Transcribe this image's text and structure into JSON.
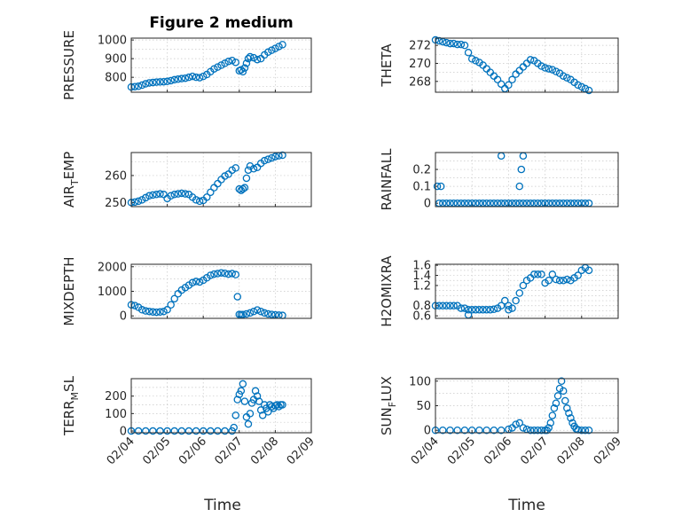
{
  "figure": {
    "title": "Figure 2 medium"
  },
  "colors": {
    "marker": "#0072bd",
    "axis": "#262626",
    "grid": "#c8c8c8"
  },
  "chart_data": [
    {
      "type": "scatter",
      "ylabel": "PRESSURE",
      "title": "Figure 2 medium",
      "ylim": [
        720,
        1010
      ],
      "xlim": [
        0,
        5
      ],
      "yticks": [
        800,
        900,
        1000
      ],
      "ytick_labels": [
        "800",
        "900",
        "1000"
      ],
      "x": [
        0,
        0.1,
        0.2,
        0.3,
        0.4,
        0.5,
        0.6,
        0.7,
        0.8,
        0.9,
        1.0,
        1.1,
        1.2,
        1.3,
        1.4,
        1.5,
        1.6,
        1.7,
        1.8,
        1.9,
        2.0,
        2.1,
        2.2,
        2.3,
        2.4,
        2.5,
        2.6,
        2.7,
        2.8,
        2.9,
        3.0,
        3.05,
        3.1,
        3.15,
        3.2,
        3.25,
        3.3,
        3.4,
        3.5,
        3.6,
        3.7,
        3.8,
        3.9,
        4.0,
        4.1,
        4.2
      ],
      "y": [
        748,
        750,
        752,
        758,
        765,
        770,
        772,
        774,
        775,
        776,
        778,
        782,
        787,
        790,
        793,
        795,
        800,
        805,
        800,
        798,
        805,
        815,
        830,
        845,
        855,
        865,
        875,
        885,
        890,
        880,
        835,
        840,
        830,
        850,
        875,
        900,
        910,
        905,
        895,
        900,
        920,
        935,
        945,
        955,
        965,
        975
      ]
    },
    {
      "type": "scatter",
      "ylabel": "THETA",
      "ylim": [
        266.8,
        272.8
      ],
      "xlim": [
        0,
        5
      ],
      "yticks": [
        268,
        270,
        272
      ],
      "ytick_labels": [
        "268",
        "270",
        "272"
      ],
      "x": [
        0,
        0.1,
        0.2,
        0.3,
        0.4,
        0.5,
        0.6,
        0.7,
        0.8,
        0.9,
        1.0,
        1.1,
        1.2,
        1.3,
        1.4,
        1.5,
        1.6,
        1.7,
        1.8,
        1.9,
        2.0,
        2.1,
        2.2,
        2.3,
        2.4,
        2.5,
        2.6,
        2.7,
        2.8,
        2.9,
        3.0,
        3.1,
        3.2,
        3.3,
        3.4,
        3.5,
        3.6,
        3.7,
        3.8,
        3.9,
        4.0,
        4.1,
        4.2
      ],
      "y": [
        272.6,
        272.5,
        272.4,
        272.3,
        272.2,
        272.2,
        272.1,
        272.1,
        272.0,
        271.2,
        270.5,
        270.3,
        270.1,
        269.8,
        269.4,
        269.0,
        268.6,
        268.2,
        267.7,
        267.2,
        267.6,
        268.2,
        268.8,
        269.2,
        269.6,
        270.0,
        270.4,
        270.3,
        270.0,
        269.7,
        269.5,
        269.4,
        269.3,
        269.1,
        268.9,
        268.6,
        268.4,
        268.2,
        267.9,
        267.6,
        267.4,
        267.2,
        267.0
      ]
    },
    {
      "type": "scatter",
      "ylabel": "AIR_TEMP",
      "ylim": [
        248.5,
        268.5
      ],
      "xlim": [
        0,
        5
      ],
      "yticks": [
        250,
        260
      ],
      "ytick_labels": [
        "250",
        "260"
      ],
      "x": [
        0,
        0.1,
        0.2,
        0.3,
        0.4,
        0.5,
        0.6,
        0.7,
        0.8,
        0.9,
        1.0,
        1.1,
        1.2,
        1.3,
        1.4,
        1.5,
        1.6,
        1.7,
        1.8,
        1.9,
        2.0,
        2.1,
        2.2,
        2.3,
        2.4,
        2.5,
        2.6,
        2.7,
        2.8,
        2.9,
        3.0,
        3.05,
        3.1,
        3.15,
        3.2,
        3.25,
        3.3,
        3.4,
        3.5,
        3.6,
        3.7,
        3.8,
        3.9,
        4.0,
        4.1,
        4.2
      ],
      "y": [
        250,
        250.2,
        250.5,
        251,
        251.8,
        252.5,
        252.8,
        253,
        253.2,
        253,
        251.5,
        252.5,
        253,
        253.2,
        253.4,
        253.2,
        253,
        252,
        251,
        250.5,
        250.8,
        252,
        253.8,
        255.5,
        257,
        258.5,
        259.8,
        260.5,
        262,
        262.8,
        255,
        254.5,
        255,
        255.5,
        259,
        262,
        263.5,
        262.5,
        263,
        264.5,
        265.5,
        266,
        266.5,
        267,
        267.3,
        267.5
      ]
    },
    {
      "type": "scatter",
      "ylabel": "RAINFALL",
      "ylim": [
        -0.02,
        0.3
      ],
      "xlim": [
        0,
        5
      ],
      "yticks": [
        0,
        0.1,
        0.2
      ],
      "ytick_labels": [
        "0",
        "0.1",
        "0.2"
      ],
      "x": [
        0.1,
        0.2,
        0.3,
        0.4,
        0.5,
        0.6,
        0.7,
        0.8,
        0.9,
        1.0,
        1.1,
        1.2,
        1.3,
        1.4,
        1.5,
        1.6,
        1.7,
        1.8,
        1.9,
        2.0,
        2.1,
        2.2,
        2.3,
        2.4,
        2.5,
        2.6,
        2.7,
        2.8,
        2.9,
        3.0,
        3.1,
        3.2,
        3.3,
        3.4,
        3.5,
        3.6,
        3.7,
        3.8,
        3.9,
        4.0,
        4.1,
        4.2,
        0.05,
        0.15,
        1.8,
        2.3,
        2.35,
        2.4
      ],
      "y": [
        0,
        0,
        0,
        0,
        0,
        0,
        0,
        0,
        0,
        0,
        0,
        0,
        0,
        0,
        0,
        0,
        0,
        0,
        0,
        0,
        0,
        0,
        0,
        0,
        0,
        0,
        0,
        0,
        0,
        0,
        0,
        0,
        0,
        0,
        0,
        0,
        0,
        0,
        0,
        0,
        0,
        0,
        0.1,
        0.1,
        0.28,
        0.1,
        0.2,
        0.28
      ]
    },
    {
      "type": "scatter",
      "ylabel": "MIXDEPTH",
      "ylim": [
        -100,
        2100
      ],
      "xlim": [
        0,
        5
      ],
      "yticks": [
        0,
        1000,
        2000
      ],
      "ytick_labels": [
        "0",
        "1000",
        "2000"
      ],
      "x": [
        0,
        0.1,
        0.2,
        0.3,
        0.4,
        0.5,
        0.6,
        0.7,
        0.8,
        0.9,
        1.0,
        1.1,
        1.2,
        1.3,
        1.4,
        1.5,
        1.6,
        1.7,
        1.8,
        1.9,
        2.0,
        2.1,
        2.2,
        2.3,
        2.4,
        2.5,
        2.6,
        2.7,
        2.8,
        2.9,
        2.95,
        3.0,
        3.05,
        3.1,
        3.2,
        3.3,
        3.4,
        3.5,
        3.6,
        3.7,
        3.8,
        3.9,
        4.0,
        4.1,
        4.2
      ],
      "y": [
        450,
        420,
        350,
        250,
        200,
        180,
        160,
        150,
        160,
        180,
        250,
        450,
        700,
        900,
        1050,
        1150,
        1250,
        1350,
        1400,
        1380,
        1450,
        1550,
        1650,
        1700,
        1720,
        1750,
        1730,
        1700,
        1720,
        1680,
        780,
        60,
        50,
        55,
        80,
        120,
        180,
        240,
        180,
        120,
        80,
        60,
        40,
        30,
        20
      ]
    },
    {
      "type": "scatter",
      "ylabel": "H2OMIXRA",
      "ylim": [
        0.55,
        1.62
      ],
      "xlim": [
        0,
        5
      ],
      "yticks": [
        0.6,
        0.8,
        1.2,
        1.4,
        1.6
      ],
      "ytick_labels": [
        "0.6",
        "0.8",
        "1.2",
        "1.4",
        "1.6"
      ],
      "x": [
        0,
        0.1,
        0.2,
        0.3,
        0.4,
        0.5,
        0.6,
        0.7,
        0.8,
        0.9,
        1.0,
        1.1,
        1.2,
        1.3,
        1.4,
        1.5,
        1.6,
        1.7,
        1.8,
        1.9,
        2.0,
        2.1,
        2.2,
        2.3,
        2.4,
        2.5,
        2.6,
        2.7,
        2.8,
        2.9,
        3.0,
        3.1,
        3.2,
        3.3,
        3.4,
        3.5,
        3.6,
        3.7,
        3.8,
        3.9,
        4.0,
        4.1,
        4.2,
        0.9,
        2.0
      ],
      "y": [
        0.8,
        0.8,
        0.8,
        0.8,
        0.8,
        0.8,
        0.8,
        0.75,
        0.75,
        0.72,
        0.72,
        0.72,
        0.72,
        0.72,
        0.72,
        0.72,
        0.73,
        0.75,
        0.8,
        0.9,
        0.72,
        0.75,
        0.9,
        1.05,
        1.2,
        1.3,
        1.35,
        1.42,
        1.42,
        1.42,
        1.25,
        1.3,
        1.42,
        1.32,
        1.3,
        1.3,
        1.32,
        1.3,
        1.35,
        1.4,
        1.5,
        1.55,
        1.5,
        0.62,
        0.8
      ]
    },
    {
      "type": "scatter",
      "ylabel": "TERR_MSL",
      "ylim": [
        -10,
        300
      ],
      "xlim": [
        0,
        5
      ],
      "yticks": [
        0,
        100,
        200
      ],
      "ytick_labels": [
        "0",
        "100",
        "200"
      ],
      "x": [
        0,
        0.2,
        0.4,
        0.6,
        0.8,
        1.0,
        1.2,
        1.4,
        1.6,
        1.8,
        2.0,
        2.2,
        2.4,
        2.6,
        2.8,
        2.85,
        2.9,
        2.95,
        3.0,
        3.05,
        3.1,
        3.15,
        3.2,
        3.25,
        3.3,
        3.35,
        3.4,
        3.45,
        3.5,
        3.55,
        3.6,
        3.65,
        3.7,
        3.75,
        3.8,
        3.85,
        3.9,
        3.95,
        4.0,
        4.05,
        4.1,
        4.15,
        4.2
      ],
      "y": [
        0,
        0,
        0,
        0,
        0,
        0,
        0,
        0,
        0,
        0,
        0,
        0,
        0,
        0,
        0,
        20,
        90,
        180,
        210,
        230,
        270,
        170,
        80,
        40,
        100,
        160,
        180,
        230,
        200,
        170,
        120,
        90,
        150,
        130,
        110,
        150,
        140,
        130,
        145,
        150,
        140,
        150,
        150
      ]
    },
    {
      "type": "scatter",
      "ylabel": "SUN_FLUX",
      "ylim": [
        -5,
        105
      ],
      "xlim": [
        0,
        5
      ],
      "yticks": [
        0,
        50,
        100
      ],
      "ytick_labels": [
        "0",
        "50",
        "100"
      ],
      "x": [
        0,
        0.2,
        0.4,
        0.6,
        0.8,
        1.0,
        1.2,
        1.4,
        1.6,
        1.8,
        2.0,
        2.1,
        2.2,
        2.3,
        2.4,
        2.5,
        2.6,
        2.7,
        2.8,
        2.9,
        3.0,
        3.05,
        3.1,
        3.15,
        3.2,
        3.25,
        3.3,
        3.35,
        3.4,
        3.45,
        3.5,
        3.55,
        3.6,
        3.65,
        3.7,
        3.75,
        3.8,
        3.85,
        3.9,
        4.0,
        4.1,
        4.2
      ],
      "y": [
        0,
        0,
        0,
        0,
        0,
        0,
        0,
        0,
        0,
        0,
        2,
        5,
        12,
        15,
        5,
        2,
        0,
        0,
        0,
        0,
        0,
        0,
        5,
        15,
        30,
        45,
        55,
        70,
        85,
        100,
        80,
        60,
        45,
        35,
        25,
        15,
        8,
        3,
        1,
        0,
        0,
        0
      ]
    }
  ],
  "x_axis": {
    "label": "Time",
    "xlim": [
      0,
      5
    ],
    "ticks": [
      0,
      1,
      2,
      3,
      4,
      5
    ],
    "tick_labels": [
      "02/04",
      "02/05",
      "02/06",
      "02/07",
      "02/08",
      "02/09"
    ]
  }
}
